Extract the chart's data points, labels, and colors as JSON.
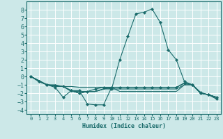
{
  "xlabel": "Humidex (Indice chaleur)",
  "ylabel": "",
  "xlim": [
    -0.5,
    23.5
  ],
  "ylim": [
    -4.5,
    9.0
  ],
  "yticks": [
    -4,
    -3,
    -2,
    -1,
    0,
    1,
    2,
    3,
    4,
    5,
    6,
    7,
    8
  ],
  "xticks": [
    0,
    1,
    2,
    3,
    4,
    5,
    6,
    7,
    8,
    9,
    10,
    11,
    12,
    13,
    14,
    15,
    16,
    17,
    18,
    19,
    20,
    21,
    22,
    23
  ],
  "bg_color": "#cce8e8",
  "line_color": "#1a6b6b",
  "grid_color": "#ffffff",
  "lines": [
    {
      "x": [
        0,
        1,
        2,
        3,
        4,
        5,
        6,
        7,
        8,
        9,
        10,
        11,
        12,
        13,
        14,
        15,
        16,
        17,
        18,
        19,
        20,
        21,
        22,
        23
      ],
      "y": [
        0,
        -0.6,
        -1,
        -1.3,
        -2.5,
        -1.7,
        -1.7,
        -3.3,
        -3.4,
        -3.4,
        -1.3,
        -1.3,
        -1.3,
        -1.3,
        -1.3,
        -1.3,
        -1.3,
        -1.3,
        -1.3,
        -0.8,
        -1.0,
        -2.0,
        -2.2,
        -2.5
      ],
      "marker": true
    },
    {
      "x": [
        0,
        1,
        2,
        3,
        4,
        5,
        6,
        7,
        8,
        9,
        10,
        11,
        12,
        13,
        14,
        15,
        16,
        17,
        18,
        19,
        20,
        21,
        22,
        23
      ],
      "y": [
        0,
        -0.5,
        -1,
        -1.2,
        -1.2,
        -1.8,
        -1.8,
        -1.8,
        -1.8,
        -1.5,
        -1.3,
        -1.3,
        -1.3,
        -1.3,
        -1.3,
        -1.3,
        -1.3,
        -1.3,
        -1.3,
        -0.8,
        -1.0,
        -2.0,
        -2.2,
        -2.5
      ],
      "marker": false
    },
    {
      "x": [
        0,
        1,
        2,
        3,
        4,
        5,
        6,
        7,
        8,
        9,
        10,
        11,
        12,
        13,
        14,
        15,
        16,
        17,
        18,
        19,
        20,
        21,
        22,
        23
      ],
      "y": [
        0,
        -0.5,
        -1,
        -1.1,
        -1.2,
        -1.2,
        -1.3,
        -1.3,
        -1.3,
        -1.3,
        -1.3,
        -1.3,
        -1.3,
        -1.3,
        -1.3,
        -1.3,
        -1.3,
        -1.3,
        -1.3,
        -0.8,
        -1.0,
        -2.0,
        -2.2,
        -2.5
      ],
      "marker": false
    },
    {
      "x": [
        0,
        1,
        2,
        3,
        4,
        5,
        6,
        7,
        8,
        9,
        10,
        11,
        12,
        13,
        14,
        15,
        16,
        17,
        18,
        19,
        20,
        21,
        22,
        23
      ],
      "y": [
        0,
        -0.5,
        -1,
        -1,
        -1.2,
        -1.7,
        -2.0,
        -1.8,
        -1.8,
        -1.5,
        -1.5,
        -1.5,
        -1.5,
        -1.5,
        -1.5,
        -1.5,
        -1.5,
        -1.5,
        -1.5,
        -1.0,
        -1.0,
        -2.0,
        -2.2,
        -2.5
      ],
      "marker": false
    },
    {
      "x": [
        0,
        1,
        2,
        3,
        4,
        5,
        6,
        7,
        8,
        9,
        10,
        11,
        12,
        13,
        14,
        15,
        16,
        17,
        18,
        19,
        20,
        21,
        22,
        23
      ],
      "y": [
        0,
        -0.6,
        -1,
        -1.1,
        -1.2,
        -1.7,
        -2.0,
        -1.8,
        -1.8,
        -1.5,
        -1.3,
        -1.8,
        -1.8,
        -1.8,
        -1.8,
        -1.8,
        -1.8,
        -1.8,
        -1.8,
        -1.0,
        -1.0,
        -2.0,
        -2.2,
        -2.7
      ],
      "marker": false
    },
    {
      "x": [
        0,
        1,
        2,
        3,
        4,
        5,
        6,
        7,
        8,
        9,
        10,
        11,
        12,
        13,
        14,
        15,
        16,
        17,
        18,
        19,
        20,
        21,
        22,
        23
      ],
      "y": [
        0,
        -0.6,
        -1,
        -1.1,
        -1.2,
        -1.7,
        -2.0,
        -1.8,
        -1.5,
        -1.3,
        -1.5,
        2.0,
        4.8,
        7.5,
        7.7,
        8.1,
        6.5,
        3.2,
        2.0,
        -0.6,
        -1.0,
        -1.9,
        -2.2,
        -2.7
      ],
      "marker": true
    }
  ]
}
